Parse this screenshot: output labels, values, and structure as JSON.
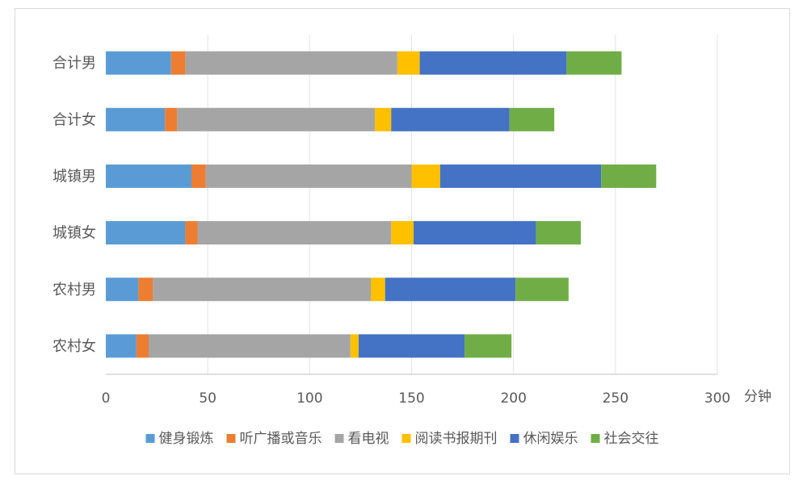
{
  "chart_data": {
    "type": "bar",
    "orientation": "horizontal",
    "stacked": true,
    "categories": [
      "合计男",
      "合计女",
      "城镇男",
      "城镇女",
      "农村男",
      "农村女"
    ],
    "series": [
      {
        "name": "健身锻炼",
        "color": "#5b9bd5",
        "values": [
          32,
          29,
          42,
          39,
          16,
          15
        ]
      },
      {
        "name": "听广播或音乐",
        "color": "#ed7d31",
        "values": [
          7,
          6,
          7,
          6,
          7,
          6
        ]
      },
      {
        "name": "看电视",
        "color": "#a5a5a5",
        "values": [
          104,
          97,
          101,
          95,
          107,
          99
        ]
      },
      {
        "name": "阅读书报期刊",
        "color": "#ffc000",
        "values": [
          11,
          8,
          14,
          11,
          7,
          4
        ]
      },
      {
        "name": "休闲娱乐",
        "color": "#4472c4",
        "values": [
          72,
          58,
          79,
          60,
          64,
          52
        ]
      },
      {
        "name": "社会交往",
        "color": "#70ad47",
        "values": [
          27,
          22,
          27,
          22,
          26,
          23
        ]
      }
    ],
    "xlim": [
      0,
      300
    ],
    "xticks": [
      0,
      50,
      100,
      150,
      200,
      250,
      300
    ],
    "xunit": "分钟",
    "grid": "vertical",
    "legend_position": "bottom"
  }
}
